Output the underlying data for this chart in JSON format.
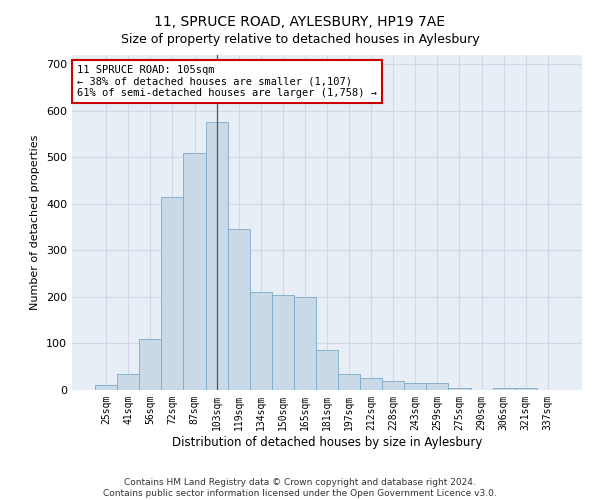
{
  "title": "11, SPRUCE ROAD, AYLESBURY, HP19 7AE",
  "subtitle": "Size of property relative to detached houses in Aylesbury",
  "xlabel": "Distribution of detached houses by size in Aylesbury",
  "ylabel": "Number of detached properties",
  "bar_color": "#c9d9e8",
  "bar_edge_color": "#7aaac8",
  "grid_color": "#d0d8e8",
  "background_color": "#e8eef5",
  "categories": [
    "25sqm",
    "41sqm",
    "56sqm",
    "72sqm",
    "87sqm",
    "103sqm",
    "119sqm",
    "134sqm",
    "150sqm",
    "165sqm",
    "181sqm",
    "197sqm",
    "212sqm",
    "228sqm",
    "243sqm",
    "259sqm",
    "275sqm",
    "290sqm",
    "306sqm",
    "321sqm",
    "337sqm"
  ],
  "values": [
    10,
    35,
    110,
    415,
    510,
    575,
    345,
    210,
    205,
    200,
    85,
    35,
    25,
    20,
    15,
    15,
    5,
    0,
    5,
    5,
    0
  ],
  "property_line_index": 5,
  "annotation_text": "11 SPRUCE ROAD: 105sqm\n← 38% of detached houses are smaller (1,107)\n61% of semi-detached houses are larger (1,758) →",
  "annotation_box_color": "#ffffff",
  "annotation_box_edge": "#cc0000",
  "footnote1": "Contains HM Land Registry data © Crown copyright and database right 2024.",
  "footnote2": "Contains public sector information licensed under the Open Government Licence v3.0.",
  "ylim": [
    0,
    720
  ],
  "yticks": [
    0,
    100,
    200,
    300,
    400,
    500,
    600,
    700
  ]
}
